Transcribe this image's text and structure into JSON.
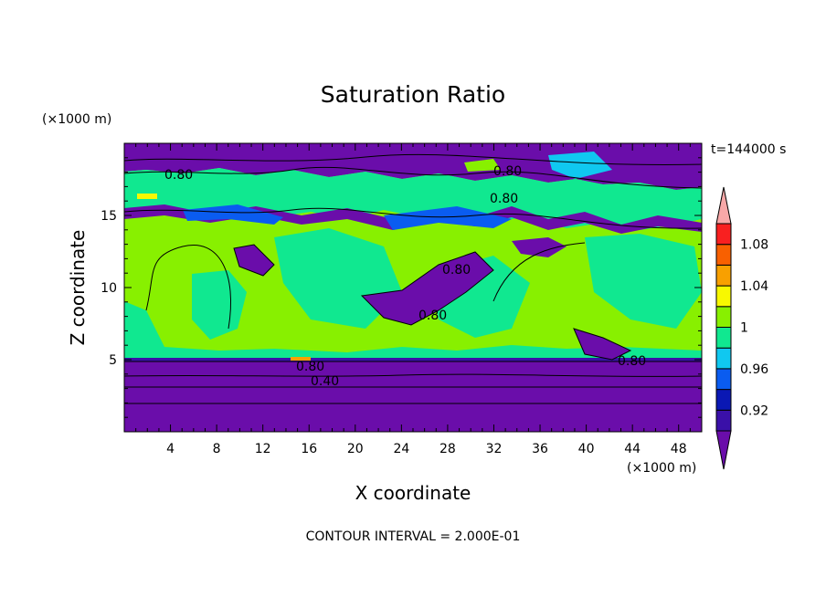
{
  "chart_data": {
    "type": "heatmap",
    "title": "Saturation Ratio",
    "xlabel": "X coordinate",
    "ylabel": "Z coordinate",
    "x_unit": "(×1000 m)",
    "y_unit": "(×1000 m)",
    "time_label": "t=144000 s",
    "footer": "CONTOUR INTERVAL = 2.000E-01",
    "xlim": [
      0,
      50
    ],
    "ylim": [
      0,
      20
    ],
    "x_ticks": [
      4,
      8,
      12,
      16,
      20,
      24,
      28,
      32,
      36,
      40,
      44,
      48
    ],
    "y_ticks": [
      5,
      10,
      15
    ],
    "colorbar": {
      "levels": [
        0.92,
        0.94,
        0.96,
        0.98,
        1.0,
        1.02,
        1.04,
        1.06,
        1.08,
        1.1
      ],
      "tick_labels": [
        "0.92",
        "0.96",
        "1",
        "1.04",
        "1.08"
      ],
      "colors": [
        "#6a0daa",
        "#3a10a8",
        "#0a18b4",
        "#0a5cf0",
        "#10c8f0",
        "#10e890",
        "#88f000",
        "#f8f800",
        "#f8a000",
        "#f86000",
        "#f82020",
        "#f8a8a8"
      ]
    },
    "contour_labels": [
      "0.80",
      "0.80",
      "0.80",
      "0.80",
      "0.80",
      "0.80",
      "0.80",
      "0.40"
    ],
    "regions": [
      {
        "level": "0.92",
        "x0": 0,
        "x1": 50,
        "z0": 0,
        "z1": 5
      },
      {
        "level": "1",
        "x0": 0,
        "x1": 50,
        "z0": 5,
        "z1": 15.5
      },
      {
        "level": "0.96",
        "x0": 0,
        "x1": 50,
        "z0": 15.5,
        "z1": 18
      },
      {
        "level": "0.92",
        "x0": 0,
        "x1": 50,
        "z0": 18,
        "z1": 20
      }
    ]
  }
}
